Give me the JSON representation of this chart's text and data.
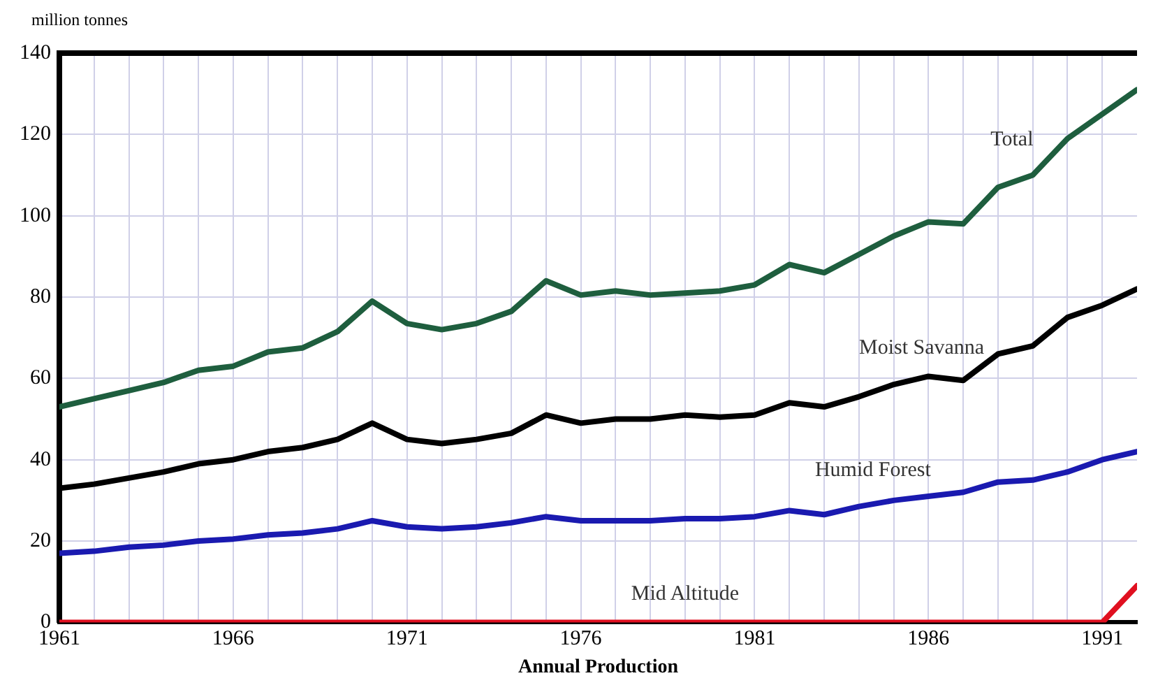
{
  "chart_data": {
    "type": "line",
    "ylabel": "million tonnes",
    "xlabel": "Annual Production",
    "x": [
      1961,
      1962,
      1963,
      1964,
      1965,
      1966,
      1967,
      1968,
      1969,
      1970,
      1971,
      1972,
      1973,
      1974,
      1975,
      1976,
      1977,
      1978,
      1979,
      1980,
      1981,
      1982,
      1983,
      1984,
      1985,
      1986,
      1987,
      1988,
      1989,
      1990,
      1991,
      1992
    ],
    "series": [
      {
        "name": "Total",
        "color": "#1e5e3e",
        "values": [
          53,
          55,
          57,
          59,
          62,
          63,
          66.5,
          67.5,
          71.5,
          79,
          73.5,
          72,
          73.5,
          76.5,
          84,
          80.5,
          81.5,
          80.5,
          81,
          81.5,
          83,
          88,
          86,
          90.5,
          95,
          98.5,
          98,
          107,
          110,
          119,
          125,
          131
        ]
      },
      {
        "name": "Moist Savanna",
        "color": "#000000",
        "values": [
          33,
          34,
          35.5,
          37,
          39,
          40,
          42,
          43,
          45,
          49,
          45,
          44,
          45,
          46.5,
          51,
          49,
          50,
          50,
          51,
          50.5,
          51,
          54,
          53,
          55.5,
          58.5,
          60.5,
          59.5,
          66,
          68,
          75,
          78,
          82
        ]
      },
      {
        "name": "Humid Forest",
        "color": "#1a1ab0",
        "values": [
          17,
          17.5,
          18.5,
          19,
          20,
          20.5,
          21.5,
          22,
          23,
          25,
          23.5,
          23,
          23.5,
          24.5,
          26,
          25,
          25,
          25,
          25.5,
          25.5,
          26,
          27.5,
          26.5,
          28.5,
          30,
          31,
          32,
          34.5,
          35,
          37,
          40,
          42
        ]
      },
      {
        "name": "Mid Altitude",
        "color": "#e01020",
        "values": [
          0,
          0,
          0,
          0,
          0,
          0,
          0,
          0,
          0,
          0,
          0,
          0,
          0,
          0,
          0,
          0,
          0,
          0,
          0,
          0,
          0,
          0,
          0,
          0,
          0,
          0,
          0,
          0,
          0,
          0,
          0,
          9
        ]
      }
    ],
    "xlim": [
      1961,
      1992
    ],
    "xticks": [
      1961,
      {
        "value": 1962,
        "label": null
      },
      {
        "value": 1963,
        "label": null
      },
      {
        "value": 1964,
        "label": null
      },
      {
        "value": 1965,
        "label": null
      },
      1966,
      {
        "value": 1967,
        "label": null
      },
      {
        "value": 1968,
        "label": null
      },
      {
        "value": 1969,
        "label": null
      },
      {
        "value": 1970,
        "label": null
      },
      1971,
      {
        "value": 1972,
        "label": null
      },
      {
        "value": 1973,
        "label": null
      },
      {
        "value": 1974,
        "label": null
      },
      {
        "value": 1975,
        "label": null
      },
      1976,
      {
        "value": 1977,
        "label": null
      },
      {
        "value": 1978,
        "label": null
      },
      {
        "value": 1979,
        "label": null
      },
      {
        "value": 1980,
        "label": null
      },
      1981,
      {
        "value": 1982,
        "label": null
      },
      {
        "value": 1983,
        "label": null
      },
      {
        "value": 1984,
        "label": null
      },
      {
        "value": 1985,
        "label": null
      },
      1986,
      {
        "value": 1987,
        "label": null
      },
      {
        "value": 1988,
        "label": null
      },
      {
        "value": 1989,
        "label": null
      },
      {
        "value": 1990,
        "label": null
      },
      1991
    ],
    "ylim": [
      0,
      140
    ],
    "yticks": [
      0,
      20,
      40,
      60,
      80,
      100,
      120,
      140
    ],
    "grid": true,
    "legend": false,
    "marker": "none",
    "line_style": "solid"
  }
}
